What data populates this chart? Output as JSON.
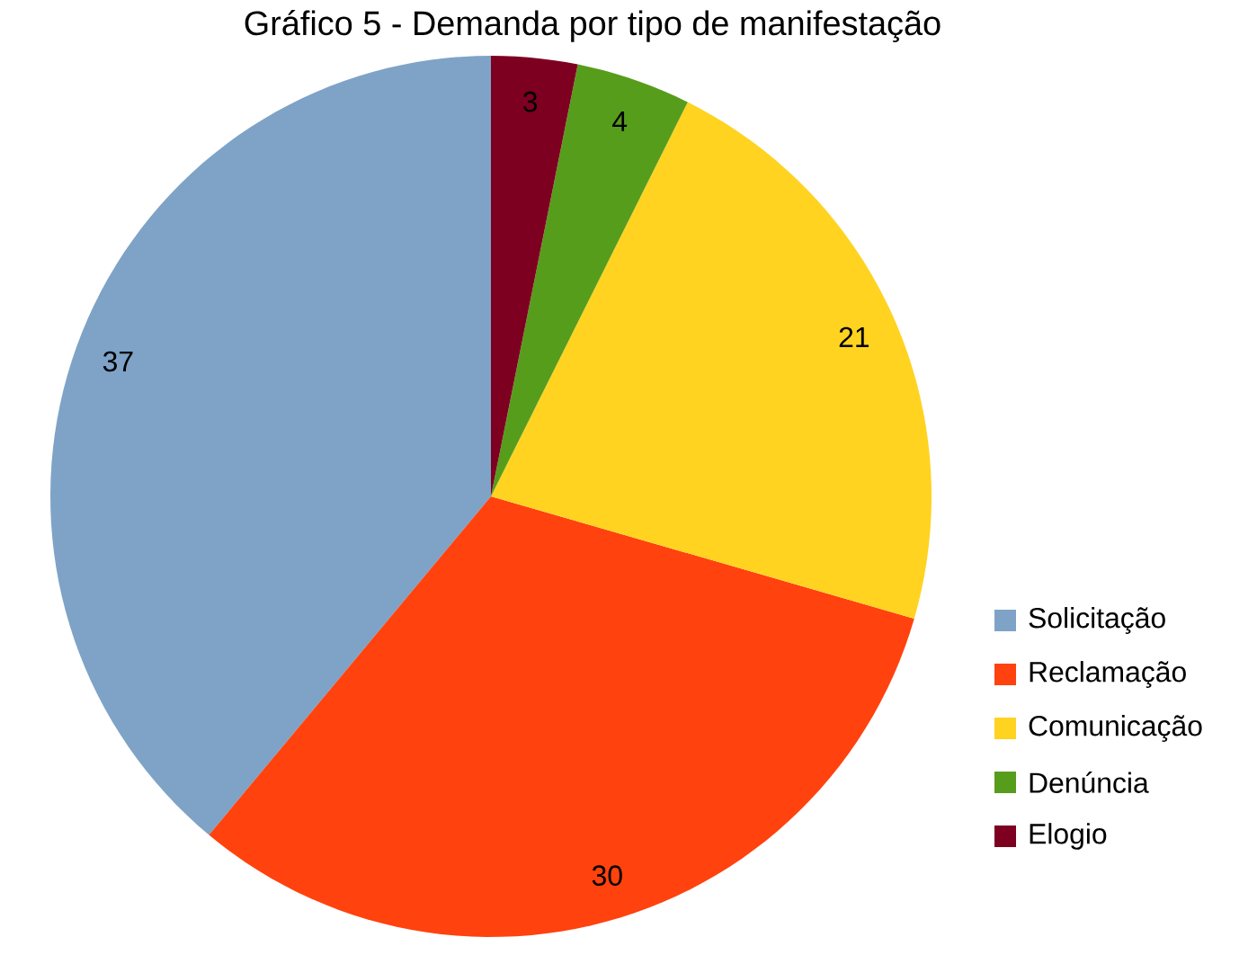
{
  "chart_data": {
    "type": "pie",
    "title": "Gráfico 5 - Demanda por tipo de manifestação",
    "categories": [
      "Solicitação",
      "Reclamação",
      "Comunicação",
      "Denúncia",
      "Elogio"
    ],
    "values": [
      37,
      30,
      21,
      4,
      3
    ],
    "colors": [
      "#7ea3c7",
      "#ff420e",
      "#ffd320",
      "#579d1c",
      "#7e0021"
    ],
    "data_labels": true,
    "legend": "right"
  }
}
